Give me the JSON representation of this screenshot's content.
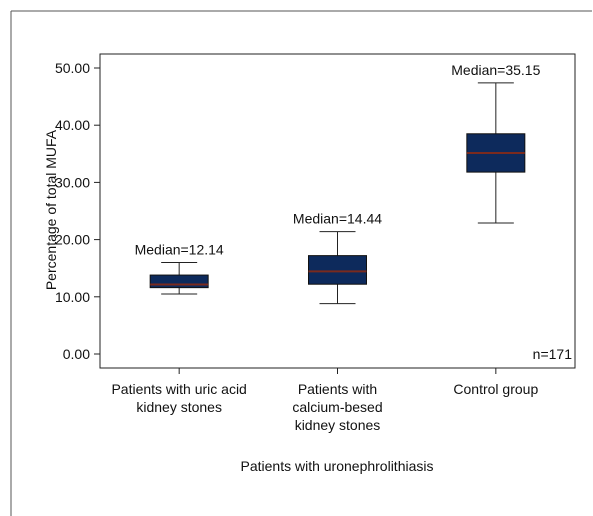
{
  "chart_data": {
    "type": "boxplot",
    "xlabel": "Patients with uronephrolithiasis",
    "ylabel": "Percentage of total MUFA",
    "ylim": [
      0,
      50
    ],
    "yticks": [
      "0.00",
      "10.00",
      "20.00",
      "30.00",
      "40.00",
      "50.00"
    ],
    "grid": false,
    "annotation": "n=171",
    "box_fill": "#0d2a5c",
    "median_color": "#7a2a1e",
    "categories": [
      {
        "label_lines": [
          "Patients with uric acid",
          "kidney stones"
        ],
        "median_label": "Median=12.14",
        "median": 12.14,
        "q1": 11.6,
        "q3": 13.8,
        "whisker_low": 10.5,
        "whisker_high": 16.0
      },
      {
        "label_lines": [
          "Patients with",
          "calcium-besed",
          "kidney stones"
        ],
        "median_label": "Median=14.44",
        "median": 14.44,
        "q1": 12.2,
        "q3": 17.2,
        "whisker_low": 8.8,
        "whisker_high": 21.4
      },
      {
        "label_lines": [
          "Control group"
        ],
        "median_label": "Median=35.15",
        "median": 35.15,
        "q1": 31.8,
        "q3": 38.5,
        "whisker_low": 22.9,
        "whisker_high": 47.4
      }
    ]
  }
}
